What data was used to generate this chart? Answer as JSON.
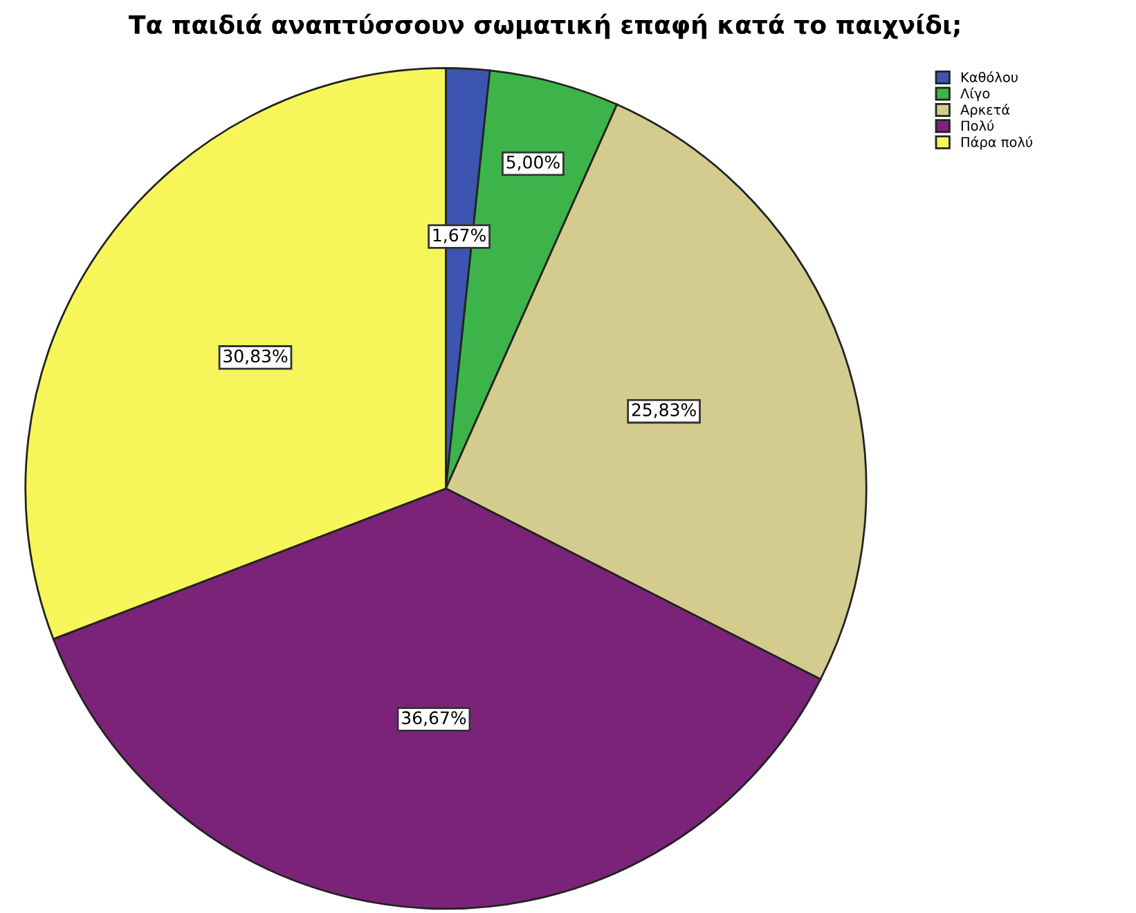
{
  "chart_data": {
    "type": "pie",
    "title": "Τα παιδιά αναπτύσσουν σωματική επαφή κατά το παιχνίδι;",
    "categories": [
      "Καθόλου",
      "Λίγο",
      "Αρκετά",
      "Πολύ",
      "Πάρα πολύ"
    ],
    "values": [
      1.67,
      5.0,
      25.83,
      36.67,
      30.83
    ],
    "value_labels": [
      "1,67%",
      "5,00%",
      "25,83%",
      "36,67%",
      "30,83%"
    ],
    "colors": [
      "#3b55b0",
      "#3cb44a",
      "#d4cc8e",
      "#7b2379",
      "#f6f65a"
    ],
    "legend": "top right"
  }
}
